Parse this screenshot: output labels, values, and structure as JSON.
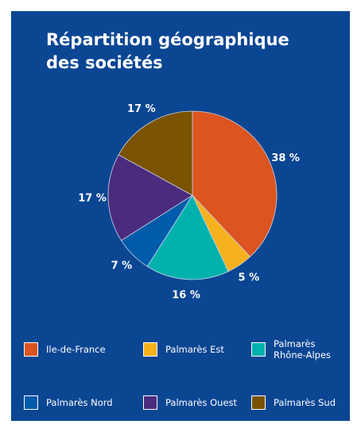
{
  "chart_data": {
    "type": "pie",
    "title": "Répartition géographique des sociétés",
    "categories": [
      "Ile-de-France",
      "Palmarès Est",
      "Palmarès Rhône-Alpes",
      "Palmarès Nord",
      "Palmarès Ouest",
      "Palmarès Sud"
    ],
    "values": [
      38,
      5,
      16,
      7,
      17,
      17
    ],
    "value_labels": [
      "38 %",
      "5 %",
      "16 %",
      "7 %",
      "17 %",
      "17 %"
    ],
    "colors": [
      "#dc5420",
      "#f7b11c",
      "#00b1ad",
      "#005bab",
      "#4b2b7d",
      "#7a5300"
    ],
    "legend": "bottom"
  }
}
